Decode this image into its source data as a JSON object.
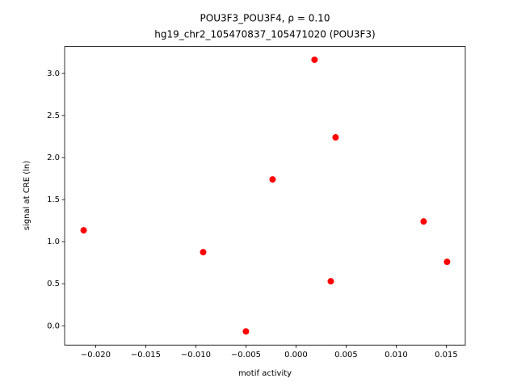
{
  "chart_data": {
    "type": "scatter",
    "title": [
      "POU3F3_POU3F4, ρ = 0.10",
      "hg19_chr2_105470837_105471020 (POU3F3)"
    ],
    "x_label": "motif activity",
    "y_label": "signal at CRE (ln)",
    "color": "#ff0000",
    "x": [
      -0.0212,
      -0.00927,
      -0.005,
      -0.00234,
      0.00185,
      0.00395,
      0.00347,
      0.01274,
      0.01508
    ],
    "values": [
      1.135,
      0.875,
      -0.067,
      1.74,
      3.163,
      2.24,
      0.529,
      1.24,
      0.76
    ],
    "xlim": [
      -0.0231,
      0.0169
    ],
    "ylim": [
      -0.23,
      3.32
    ],
    "xticks": [
      {
        "value": -0.02,
        "label": "−0.020"
      },
      {
        "value": -0.015,
        "label": "−0.015"
      },
      {
        "value": -0.01,
        "label": "−0.010"
      },
      {
        "value": -0.005,
        "label": "−0.005"
      },
      {
        "value": 0,
        "label": "0.000"
      },
      0.005,
      {
        "value": 0.01,
        "label": "0.010"
      },
      0.015
    ],
    "yticks": [
      {
        "value": 0,
        "label": "0.0"
      },
      0.5,
      {
        "value": 1,
        "label": "1.0"
      },
      1.5,
      {
        "value": 2,
        "label": "2.0"
      },
      2.5,
      {
        "value": 3,
        "label": "3.0"
      }
    ]
  }
}
